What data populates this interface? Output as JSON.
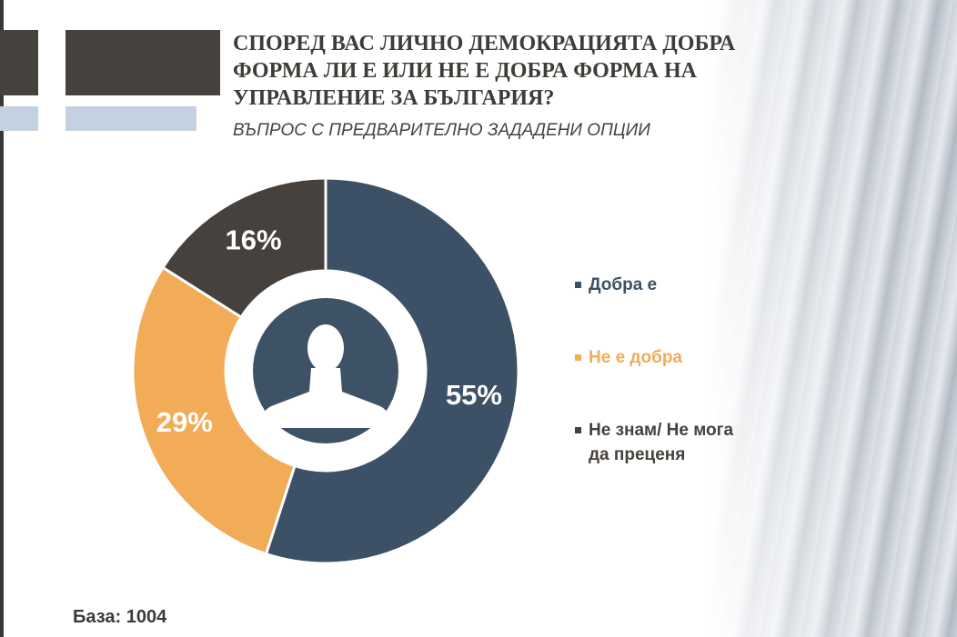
{
  "title": "СПОРЕД ВАС ЛИЧНО ДЕМОКРАЦИЯТА ДОБРА ФОРМА ЛИ Е ИЛИ НЕ Е ДОБРА ФОРМА НА УПРАВЛЕНИЕ ЗА БЪЛГАРИЯ?",
  "subtitle": "ВЪПРОС С ПРЕДВАРИТЕЛНО ЗАДАДЕНИ ОПЦИИ",
  "base_label": "База: 1004",
  "center_icon": "person-silhouette-icon",
  "colors": {
    "dobra": "#3c5165",
    "ne_dobra": "#f2ac58",
    "ne_znam": "#46413c",
    "accent_dark": "#46423d",
    "accent_light": "#c3d1e0"
  },
  "chart_data": {
    "type": "pie",
    "subtype": "donut",
    "title": "СПОРЕД ВАС ЛИЧНО ДЕМОКРАЦИЯТА ДОБРА ФОРМА ЛИ Е ИЛИ НЕ Е ДОБРА ФОРМА НА УПРАВЛЕНИЕ ЗА БЪЛГАРИЯ?",
    "unit": "%",
    "legend_position": "right",
    "slices": [
      {
        "name": "Добра е",
        "value": 55,
        "label": "55%",
        "color": "#3c5165"
      },
      {
        "name": "Не е добра",
        "value": 29,
        "label": "29%",
        "color": "#f2ac58"
      },
      {
        "name": "Не знам/ Не мога да преценя",
        "value": 16,
        "label": "16%",
        "color": "#46413c"
      }
    ]
  }
}
